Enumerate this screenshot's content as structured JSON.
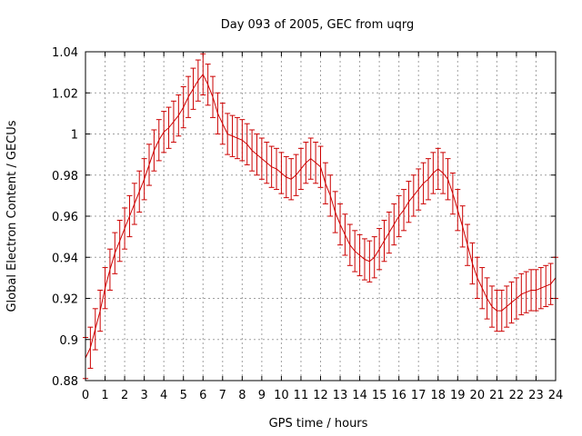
{
  "chart_data": {
    "type": "line",
    "title": "Day 093 of 2005, GEC from uqrg",
    "xlabel": "GPS time / hours",
    "ylabel": "Global Electron Content / GECUs",
    "xlim": [
      0,
      24
    ],
    "ylim": [
      0.88,
      1.04
    ],
    "xticks": [
      0,
      1,
      2,
      3,
      4,
      5,
      6,
      7,
      8,
      9,
      10,
      11,
      12,
      13,
      14,
      15,
      16,
      17,
      18,
      19,
      20,
      21,
      22,
      23,
      24
    ],
    "yticks": [
      "0.88",
      "0.9",
      "0.92",
      "0.94",
      "0.96",
      "0.98",
      "1",
      "1.02",
      "1.04"
    ],
    "grid": true,
    "error_bar": 0.01,
    "series": [
      {
        "name": "GEC",
        "color": "#cc0000",
        "x": [
          0,
          0.25,
          0.5,
          0.75,
          1,
          1.25,
          1.5,
          1.75,
          2,
          2.25,
          2.5,
          2.75,
          3,
          3.25,
          3.5,
          3.75,
          4,
          4.25,
          4.5,
          4.75,
          5,
          5.25,
          5.5,
          5.75,
          6,
          6.25,
          6.5,
          6.75,
          7,
          7.25,
          7.5,
          7.75,
          8,
          8.25,
          8.5,
          8.75,
          9,
          9.25,
          9.5,
          9.75,
          10,
          10.25,
          10.5,
          10.75,
          11,
          11.25,
          11.5,
          11.75,
          12,
          12.25,
          12.5,
          12.75,
          13,
          13.25,
          13.5,
          13.75,
          14,
          14.25,
          14.5,
          14.75,
          15,
          15.25,
          15.5,
          15.75,
          16,
          16.25,
          16.5,
          16.75,
          17,
          17.25,
          17.5,
          17.75,
          18,
          18.25,
          18.5,
          18.75,
          19,
          19.25,
          19.5,
          19.75,
          20,
          20.25,
          20.5,
          20.75,
          21,
          21.25,
          21.5,
          21.75,
          22,
          22.25,
          22.5,
          22.75,
          23,
          23.25,
          23.5,
          23.75,
          24
        ],
        "y": [
          0.891,
          0.896,
          0.905,
          0.914,
          0.925,
          0.934,
          0.942,
          0.948,
          0.954,
          0.96,
          0.966,
          0.972,
          0.978,
          0.985,
          0.992,
          0.997,
          1.001,
          1.003,
          1.006,
          1.009,
          1.013,
          1.018,
          1.022,
          1.026,
          1.029,
          1.024,
          1.018,
          1.01,
          1.005,
          1.0,
          0.999,
          0.998,
          0.997,
          0.995,
          0.992,
          0.99,
          0.988,
          0.986,
          0.984,
          0.983,
          0.981,
          0.979,
          0.978,
          0.98,
          0.983,
          0.986,
          0.988,
          0.986,
          0.984,
          0.976,
          0.97,
          0.962,
          0.956,
          0.951,
          0.946,
          0.943,
          0.941,
          0.939,
          0.938,
          0.94,
          0.944,
          0.948,
          0.952,
          0.956,
          0.96,
          0.963,
          0.967,
          0.97,
          0.973,
          0.976,
          0.978,
          0.981,
          0.983,
          0.981,
          0.978,
          0.971,
          0.963,
          0.955,
          0.946,
          0.937,
          0.93,
          0.925,
          0.92,
          0.916,
          0.914,
          0.914,
          0.916,
          0.918,
          0.92,
          0.922,
          0.923,
          0.924,
          0.924,
          0.925,
          0.926,
          0.927,
          0.93
        ]
      }
    ]
  }
}
